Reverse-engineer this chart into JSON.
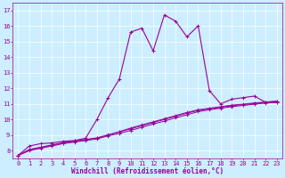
{
  "xlabel": "Windchill (Refroidissement éolien,°C)",
  "bg_color": "#cceeff",
  "line_color": "#990099",
  "grid_color": "#ffffff",
  "xlim": [
    -0.5,
    23.5
  ],
  "ylim": [
    7.5,
    17.5
  ],
  "xticks": [
    0,
    1,
    2,
    3,
    4,
    5,
    6,
    7,
    8,
    9,
    10,
    11,
    12,
    13,
    14,
    15,
    16,
    17,
    18,
    19,
    20,
    21,
    22,
    23
  ],
  "yticks": [
    8,
    9,
    10,
    11,
    12,
    13,
    14,
    15,
    16,
    17
  ],
  "curve1_x": [
    0,
    1,
    2,
    3,
    4,
    5,
    6,
    7,
    8,
    9,
    10,
    11,
    12,
    13,
    14,
    15,
    16,
    17,
    18,
    19,
    20,
    21,
    22,
    23
  ],
  "curve1_y": [
    7.7,
    8.3,
    8.45,
    8.5,
    8.6,
    8.65,
    8.8,
    10.0,
    11.4,
    12.6,
    15.6,
    15.85,
    14.4,
    16.7,
    16.3,
    15.3,
    16.0,
    11.85,
    11.0,
    11.3,
    11.4,
    11.5,
    11.1,
    11.1
  ],
  "curve2_x": [
    0,
    1,
    2,
    3,
    4,
    5,
    6,
    7,
    8,
    9,
    10,
    11,
    12,
    13,
    14,
    15,
    16,
    17,
    18,
    19,
    20,
    21,
    22,
    23
  ],
  "curve2_y": [
    7.7,
    8.0,
    8.15,
    8.3,
    8.45,
    8.55,
    8.65,
    8.75,
    8.95,
    9.1,
    9.3,
    9.5,
    9.7,
    9.9,
    10.1,
    10.3,
    10.5,
    10.62,
    10.72,
    10.82,
    10.9,
    10.98,
    11.05,
    11.1
  ],
  "curve3_x": [
    0,
    1,
    2,
    3,
    4,
    5,
    6,
    7,
    8,
    9,
    10,
    11,
    12,
    13,
    14,
    15,
    16,
    17,
    18,
    19,
    20,
    21,
    22,
    23
  ],
  "curve3_y": [
    7.7,
    8.05,
    8.2,
    8.35,
    8.5,
    8.6,
    8.7,
    8.8,
    9.0,
    9.2,
    9.4,
    9.6,
    9.8,
    10.0,
    10.2,
    10.4,
    10.58,
    10.68,
    10.78,
    10.88,
    10.95,
    11.03,
    11.1,
    11.15
  ],
  "curve4_x": [
    0,
    1,
    2,
    3,
    4,
    5,
    6,
    7,
    8,
    9,
    10,
    11,
    12,
    13,
    14,
    15,
    16,
    17,
    18,
    19,
    20,
    21,
    22,
    23
  ],
  "curve4_y": [
    7.7,
    8.08,
    8.22,
    8.37,
    8.52,
    8.62,
    8.72,
    8.82,
    9.02,
    9.22,
    9.45,
    9.65,
    9.85,
    10.05,
    10.25,
    10.45,
    10.62,
    10.72,
    10.82,
    10.92,
    10.98,
    11.06,
    11.12,
    11.18
  ]
}
